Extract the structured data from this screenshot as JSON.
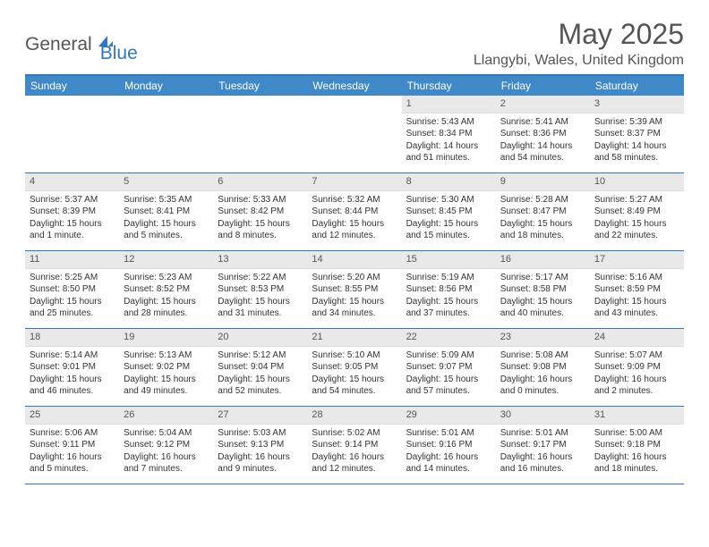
{
  "logo": {
    "part1": "General",
    "part2": "Blue"
  },
  "title": "May 2025",
  "subtitle": "Llangybi, Wales, United Kingdom",
  "colors": {
    "header_bg": "#3f89c9",
    "border": "#2f78bf",
    "daynum_bg": "#e9e9e9",
    "text": "#333333",
    "title_text": "#555555"
  },
  "day_headers": [
    "Sunday",
    "Monday",
    "Tuesday",
    "Wednesday",
    "Thursday",
    "Friday",
    "Saturday"
  ],
  "weeks": [
    [
      {
        "empty": true
      },
      {
        "empty": true
      },
      {
        "empty": true
      },
      {
        "empty": true
      },
      {
        "day": "1",
        "sunrise": "Sunrise: 5:43 AM",
        "sunset": "Sunset: 8:34 PM",
        "daylight": "Daylight: 14 hours and 51 minutes."
      },
      {
        "day": "2",
        "sunrise": "Sunrise: 5:41 AM",
        "sunset": "Sunset: 8:36 PM",
        "daylight": "Daylight: 14 hours and 54 minutes."
      },
      {
        "day": "3",
        "sunrise": "Sunrise: 5:39 AM",
        "sunset": "Sunset: 8:37 PM",
        "daylight": "Daylight: 14 hours and 58 minutes."
      }
    ],
    [
      {
        "day": "4",
        "sunrise": "Sunrise: 5:37 AM",
        "sunset": "Sunset: 8:39 PM",
        "daylight": "Daylight: 15 hours and 1 minute."
      },
      {
        "day": "5",
        "sunrise": "Sunrise: 5:35 AM",
        "sunset": "Sunset: 8:41 PM",
        "daylight": "Daylight: 15 hours and 5 minutes."
      },
      {
        "day": "6",
        "sunrise": "Sunrise: 5:33 AM",
        "sunset": "Sunset: 8:42 PM",
        "daylight": "Daylight: 15 hours and 8 minutes."
      },
      {
        "day": "7",
        "sunrise": "Sunrise: 5:32 AM",
        "sunset": "Sunset: 8:44 PM",
        "daylight": "Daylight: 15 hours and 12 minutes."
      },
      {
        "day": "8",
        "sunrise": "Sunrise: 5:30 AM",
        "sunset": "Sunset: 8:45 PM",
        "daylight": "Daylight: 15 hours and 15 minutes."
      },
      {
        "day": "9",
        "sunrise": "Sunrise: 5:28 AM",
        "sunset": "Sunset: 8:47 PM",
        "daylight": "Daylight: 15 hours and 18 minutes."
      },
      {
        "day": "10",
        "sunrise": "Sunrise: 5:27 AM",
        "sunset": "Sunset: 8:49 PM",
        "daylight": "Daylight: 15 hours and 22 minutes."
      }
    ],
    [
      {
        "day": "11",
        "sunrise": "Sunrise: 5:25 AM",
        "sunset": "Sunset: 8:50 PM",
        "daylight": "Daylight: 15 hours and 25 minutes."
      },
      {
        "day": "12",
        "sunrise": "Sunrise: 5:23 AM",
        "sunset": "Sunset: 8:52 PM",
        "daylight": "Daylight: 15 hours and 28 minutes."
      },
      {
        "day": "13",
        "sunrise": "Sunrise: 5:22 AM",
        "sunset": "Sunset: 8:53 PM",
        "daylight": "Daylight: 15 hours and 31 minutes."
      },
      {
        "day": "14",
        "sunrise": "Sunrise: 5:20 AM",
        "sunset": "Sunset: 8:55 PM",
        "daylight": "Daylight: 15 hours and 34 minutes."
      },
      {
        "day": "15",
        "sunrise": "Sunrise: 5:19 AM",
        "sunset": "Sunset: 8:56 PM",
        "daylight": "Daylight: 15 hours and 37 minutes."
      },
      {
        "day": "16",
        "sunrise": "Sunrise: 5:17 AM",
        "sunset": "Sunset: 8:58 PM",
        "daylight": "Daylight: 15 hours and 40 minutes."
      },
      {
        "day": "17",
        "sunrise": "Sunrise: 5:16 AM",
        "sunset": "Sunset: 8:59 PM",
        "daylight": "Daylight: 15 hours and 43 minutes."
      }
    ],
    [
      {
        "day": "18",
        "sunrise": "Sunrise: 5:14 AM",
        "sunset": "Sunset: 9:01 PM",
        "daylight": "Daylight: 15 hours and 46 minutes."
      },
      {
        "day": "19",
        "sunrise": "Sunrise: 5:13 AM",
        "sunset": "Sunset: 9:02 PM",
        "daylight": "Daylight: 15 hours and 49 minutes."
      },
      {
        "day": "20",
        "sunrise": "Sunrise: 5:12 AM",
        "sunset": "Sunset: 9:04 PM",
        "daylight": "Daylight: 15 hours and 52 minutes."
      },
      {
        "day": "21",
        "sunrise": "Sunrise: 5:10 AM",
        "sunset": "Sunset: 9:05 PM",
        "daylight": "Daylight: 15 hours and 54 minutes."
      },
      {
        "day": "22",
        "sunrise": "Sunrise: 5:09 AM",
        "sunset": "Sunset: 9:07 PM",
        "daylight": "Daylight: 15 hours and 57 minutes."
      },
      {
        "day": "23",
        "sunrise": "Sunrise: 5:08 AM",
        "sunset": "Sunset: 9:08 PM",
        "daylight": "Daylight: 16 hours and 0 minutes."
      },
      {
        "day": "24",
        "sunrise": "Sunrise: 5:07 AM",
        "sunset": "Sunset: 9:09 PM",
        "daylight": "Daylight: 16 hours and 2 minutes."
      }
    ],
    [
      {
        "day": "25",
        "sunrise": "Sunrise: 5:06 AM",
        "sunset": "Sunset: 9:11 PM",
        "daylight": "Daylight: 16 hours and 5 minutes."
      },
      {
        "day": "26",
        "sunrise": "Sunrise: 5:04 AM",
        "sunset": "Sunset: 9:12 PM",
        "daylight": "Daylight: 16 hours and 7 minutes."
      },
      {
        "day": "27",
        "sunrise": "Sunrise: 5:03 AM",
        "sunset": "Sunset: 9:13 PM",
        "daylight": "Daylight: 16 hours and 9 minutes."
      },
      {
        "day": "28",
        "sunrise": "Sunrise: 5:02 AM",
        "sunset": "Sunset: 9:14 PM",
        "daylight": "Daylight: 16 hours and 12 minutes."
      },
      {
        "day": "29",
        "sunrise": "Sunrise: 5:01 AM",
        "sunset": "Sunset: 9:16 PM",
        "daylight": "Daylight: 16 hours and 14 minutes."
      },
      {
        "day": "30",
        "sunrise": "Sunrise: 5:01 AM",
        "sunset": "Sunset: 9:17 PM",
        "daylight": "Daylight: 16 hours and 16 minutes."
      },
      {
        "day": "31",
        "sunrise": "Sunrise: 5:00 AM",
        "sunset": "Sunset: 9:18 PM",
        "daylight": "Daylight: 16 hours and 18 minutes."
      }
    ]
  ]
}
